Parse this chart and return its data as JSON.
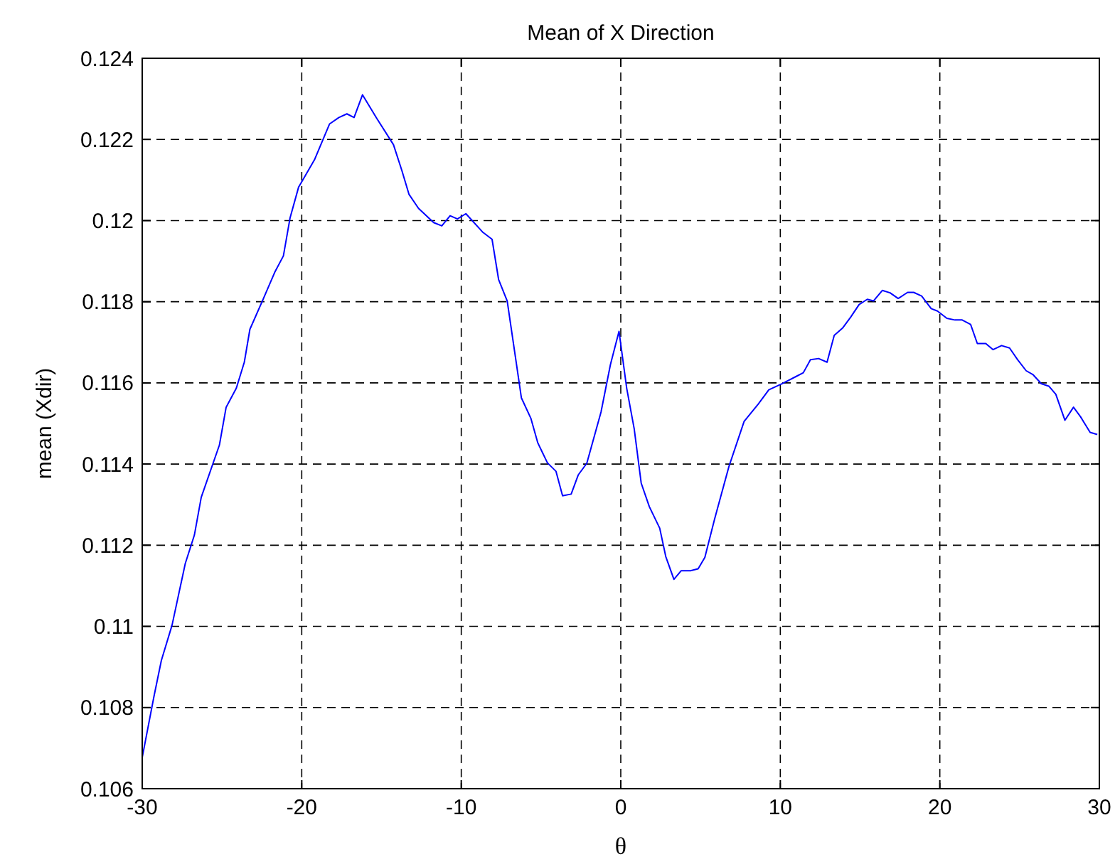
{
  "chart_data": {
    "type": "line",
    "title": "Mean of X Direction",
    "xlabel": "θ",
    "ylabel": "mean (Xdir)",
    "xlim": [
      -30,
      30
    ],
    "xticks": [
      -30,
      -20,
      -10,
      0,
      10,
      20,
      30
    ],
    "ylim": [
      0.106,
      0.124
    ],
    "yticks": [
      0.106,
      0.108,
      0.11,
      0.112,
      0.114,
      0.116,
      0.118,
      0.12,
      0.122,
      0.124
    ],
    "grid": true,
    "line_style": "solid",
    "marker": "none",
    "series": [
      {
        "color": "#0000ff",
        "x": [
          -30,
          -29.26,
          -28.8,
          -28.13,
          -27.3,
          -26.73,
          -26.3,
          -25.16,
          -24.74,
          -24.1,
          -23.6,
          -23.25,
          -22.4,
          -21.7,
          -21.15,
          -20.73,
          -20.2,
          -19.2,
          -18.26,
          -17.67,
          -17.17,
          -16.72,
          -16.19,
          -15.3,
          -14.25,
          -13.72,
          -13.28,
          -12.68,
          -11.73,
          -11.22,
          -10.7,
          -10.24,
          -9.71,
          -8.67,
          -8.07,
          -7.66,
          -7.12,
          -6.23,
          -5.64,
          -5.2,
          -4.6,
          -4.06,
          -3.65,
          -3.11,
          -2.67,
          -2.13,
          -1.24,
          -0.65,
          -0.11,
          0.37,
          0.84,
          1.28,
          1.79,
          2.44,
          2.82,
          3.33,
          3.78,
          4.37,
          4.85,
          5.27,
          5.89,
          6.78,
          7.73,
          8.62,
          9.28,
          10.1,
          11.0,
          11.44,
          11.89,
          12.4,
          12.93,
          13.38,
          13.9,
          14.41,
          14.94,
          15.45,
          15.84,
          16.4,
          16.88,
          17.39,
          17.98,
          18.36,
          18.86,
          19.46,
          19.85,
          20.44,
          20.95,
          21.4,
          21.93,
          22.35,
          22.88,
          23.33,
          23.87,
          24.37,
          24.88,
          25.41,
          25.85,
          26.36,
          26.83,
          27.27,
          27.84,
          28.38,
          28.83,
          29.42,
          29.87
        ],
        "values": [
          0.10677,
          0.10828,
          0.10916,
          0.11003,
          0.11155,
          0.11225,
          0.11318,
          0.11447,
          0.1154,
          0.11587,
          0.11651,
          0.11732,
          0.11808,
          0.11872,
          0.11913,
          0.12007,
          0.12082,
          0.1215,
          0.12238,
          0.12254,
          0.12263,
          0.12254,
          0.1231,
          0.12252,
          0.12187,
          0.12123,
          0.12065,
          0.1203,
          0.11995,
          0.11987,
          0.12012,
          0.12004,
          0.12017,
          0.11972,
          0.11954,
          0.11855,
          0.11802,
          0.11563,
          0.11513,
          0.11452,
          0.11403,
          0.11382,
          0.11322,
          0.11326,
          0.11373,
          0.11402,
          0.11528,
          0.11645,
          0.11727,
          0.11587,
          0.11487,
          0.11353,
          0.11295,
          0.11242,
          0.11172,
          0.11116,
          0.11137,
          0.11137,
          0.11142,
          0.1117,
          0.11266,
          0.11394,
          0.11505,
          0.11548,
          0.11583,
          0.11598,
          0.11616,
          0.11625,
          0.11657,
          0.1166,
          0.11651,
          0.11717,
          0.11735,
          0.11762,
          0.11793,
          0.11806,
          0.11802,
          0.11828,
          0.11822,
          0.11808,
          0.11823,
          0.11823,
          0.11814,
          0.11783,
          0.11777,
          0.11759,
          0.11755,
          0.11755,
          0.11744,
          0.11697,
          0.11697,
          0.11682,
          0.11692,
          0.11686,
          0.11657,
          0.1163,
          0.1162,
          0.11598,
          0.11592,
          0.11572,
          0.11508,
          0.1154,
          0.11516,
          0.11478,
          0.11473
        ]
      }
    ]
  }
}
